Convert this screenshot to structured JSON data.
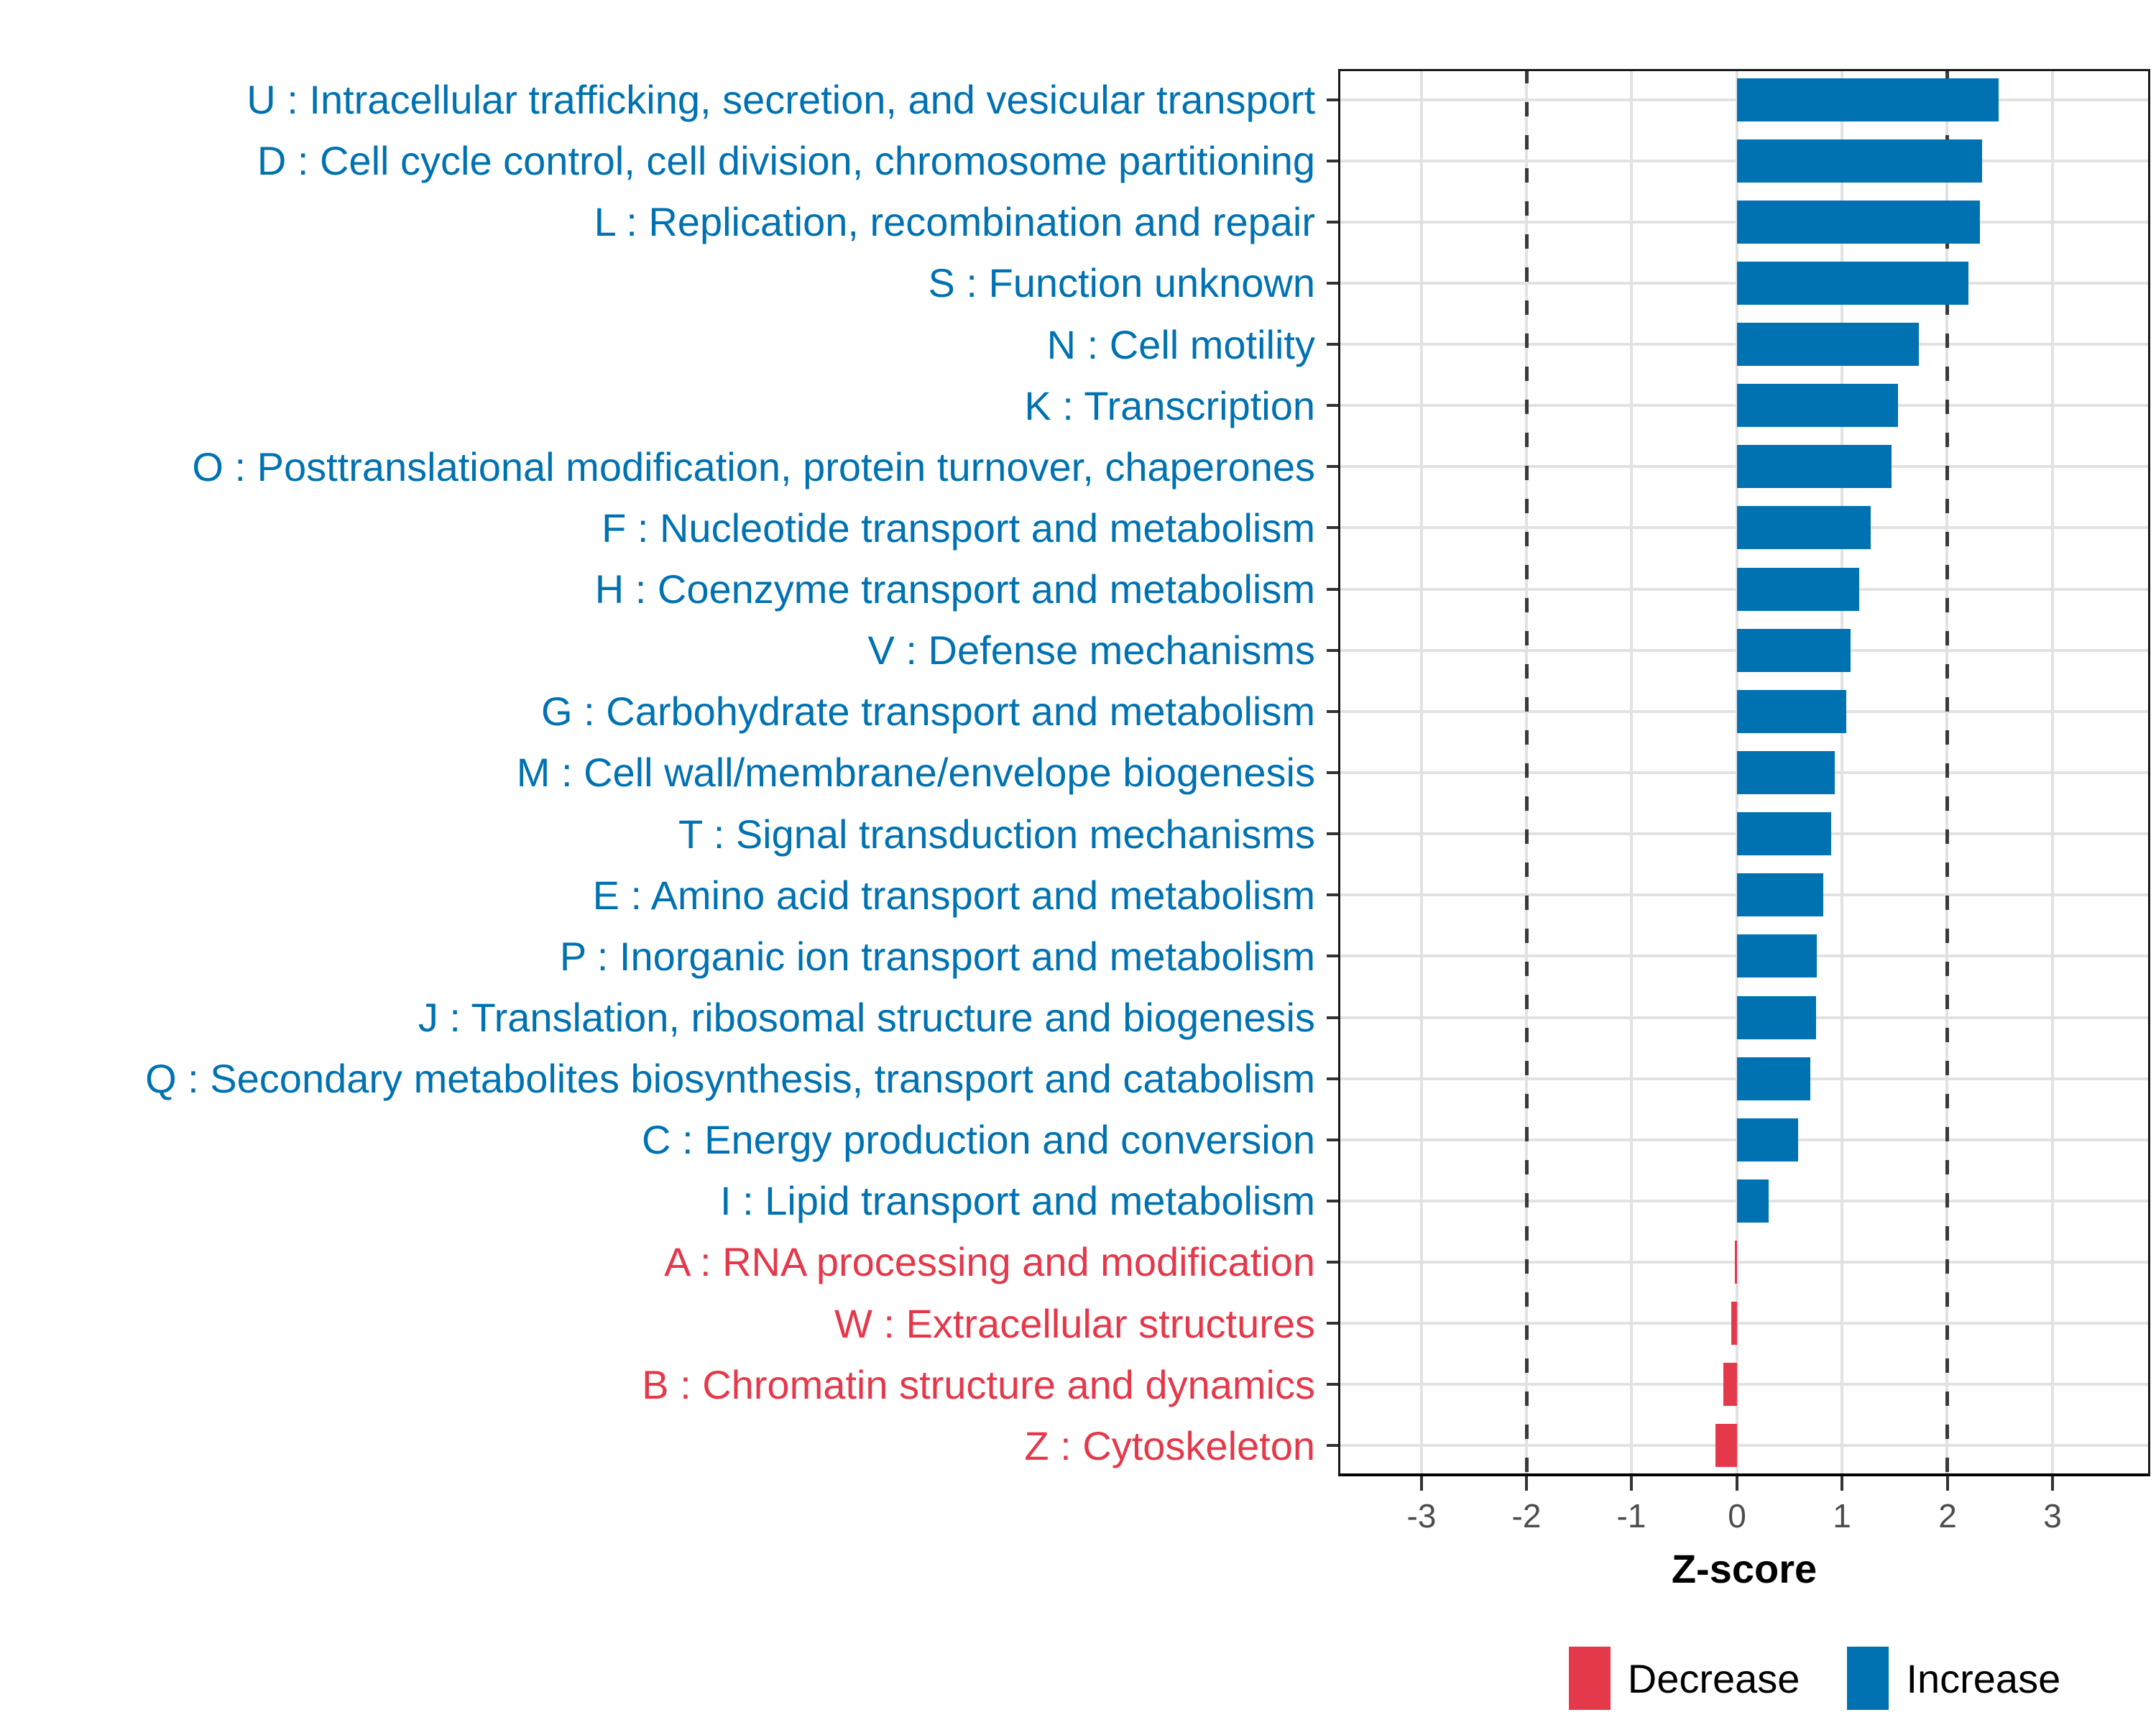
{
  "chart_data": {
    "type": "bar",
    "orientation": "horizontal",
    "title": "",
    "xlabel": "Z-score",
    "ylabel": "",
    "x_ticks": [
      -3,
      -2,
      -1,
      0,
      1,
      2,
      3
    ],
    "xlim": [
      -3.79,
      3.93
    ],
    "reference_lines": [
      -2,
      2
    ],
    "grid": true,
    "legend_position": "bottom",
    "legend": [
      {
        "label": "Decrease",
        "color": "#E4394B"
      },
      {
        "label": "Increase",
        "color": "#0072B2"
      }
    ],
    "bars": [
      {
        "category": "U : Intracellular trafficking, secretion, and vesicular transport",
        "value": 2.49,
        "group": "Increase"
      },
      {
        "category": "D : Cell cycle control, cell division, chromosome partitioning",
        "value": 2.33,
        "group": "Increase"
      },
      {
        "category": "L : Replication, recombination and repair",
        "value": 2.31,
        "group": "Increase"
      },
      {
        "category": "S : Function unknown",
        "value": 2.2,
        "group": "Increase"
      },
      {
        "category": "N : Cell motility",
        "value": 1.73,
        "group": "Increase"
      },
      {
        "category": "K : Transcription",
        "value": 1.53,
        "group": "Increase"
      },
      {
        "category": "O : Posttranslational modification, protein turnover, chaperones",
        "value": 1.47,
        "group": "Increase"
      },
      {
        "category": "F : Nucleotide transport and metabolism",
        "value": 1.27,
        "group": "Increase"
      },
      {
        "category": "H : Coenzyme transport and metabolism",
        "value": 1.16,
        "group": "Increase"
      },
      {
        "category": "V : Defense mechanisms",
        "value": 1.08,
        "group": "Increase"
      },
      {
        "category": "G : Carbohydrate transport and metabolism",
        "value": 1.04,
        "group": "Increase"
      },
      {
        "category": "M : Cell wall/membrane/envelope biogenesis",
        "value": 0.93,
        "group": "Increase"
      },
      {
        "category": "T : Signal transduction mechanisms",
        "value": 0.9,
        "group": "Increase"
      },
      {
        "category": "E : Amino acid transport and metabolism",
        "value": 0.82,
        "group": "Increase"
      },
      {
        "category": "P : Inorganic ion transport and metabolism",
        "value": 0.76,
        "group": "Increase"
      },
      {
        "category": "J : Translation, ribosomal structure and biogenesis",
        "value": 0.75,
        "group": "Increase"
      },
      {
        "category": "Q : Secondary metabolites biosynthesis, transport and catabolism",
        "value": 0.7,
        "group": "Increase"
      },
      {
        "category": "C : Energy production and conversion",
        "value": 0.58,
        "group": "Increase"
      },
      {
        "category": "I : Lipid transport and metabolism",
        "value": 0.3,
        "group": "Increase"
      },
      {
        "category": "A : RNA processing and modification",
        "value": -0.02,
        "group": "Decrease"
      },
      {
        "category": "W : Extracellular structures",
        "value": -0.05,
        "group": "Decrease"
      },
      {
        "category": "B : Chromatin structure and dynamics",
        "value": -0.13,
        "group": "Decrease"
      },
      {
        "category": "Z : Cytoskeleton",
        "value": -0.2,
        "group": "Decrease"
      }
    ]
  },
  "colors": {
    "increase": "#0072B2",
    "decrease": "#E4394B",
    "grid": "#E2E2E2",
    "reference_line": "#3A3A3A",
    "axis_text": "#4D4D4D",
    "panel_border": "#1A1A1A"
  }
}
